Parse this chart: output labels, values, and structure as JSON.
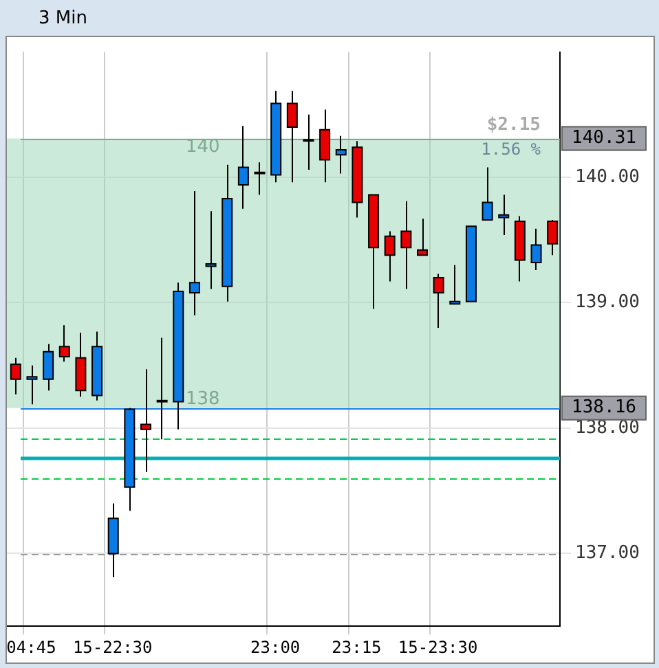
{
  "chart_data": {
    "type": "candlestick",
    "title": "3 Min",
    "categories": [
      null,
      "04:45",
      null,
      null,
      null,
      null,
      "15-22:30",
      null,
      null,
      null,
      null,
      null,
      null,
      null,
      null,
      null,
      "23:00",
      null,
      null,
      null,
      null,
      "23:15",
      null,
      null,
      null,
      null,
      "15-23:30",
      null,
      null,
      null,
      null,
      null,
      null,
      null
    ],
    "ohlc": [
      [
        138.51,
        138.56,
        138.27,
        138.39
      ],
      [
        138.39,
        138.5,
        138.19,
        138.41
      ],
      [
        138.39,
        138.67,
        138.3,
        138.61
      ],
      [
        138.65,
        138.82,
        138.53,
        138.57
      ],
      [
        138.56,
        138.76,
        138.25,
        138.3
      ],
      [
        138.26,
        138.77,
        138.22,
        138.65
      ],
      [
        137.0,
        137.4,
        136.81,
        137.28
      ],
      [
        137.53,
        138.16,
        137.34,
        138.15
      ],
      [
        138.03,
        138.47,
        137.65,
        137.99
      ],
      [
        138.21,
        138.72,
        137.91,
        138.22
      ],
      [
        138.21,
        139.16,
        137.99,
        139.09
      ],
      [
        139.08,
        139.89,
        138.9,
        139.16
      ],
      [
        139.29,
        139.73,
        139.11,
        139.31
      ],
      [
        139.13,
        140.1,
        139.01,
        139.83
      ],
      [
        139.94,
        140.41,
        139.75,
        140.08
      ],
      [
        140.03,
        140.12,
        139.86,
        140.04
      ],
      [
        140.02,
        140.69,
        139.96,
        140.59
      ],
      [
        140.59,
        140.69,
        139.96,
        140.4
      ],
      [
        140.3,
        140.5,
        140.06,
        140.29
      ],
      [
        140.38,
        140.54,
        139.96,
        140.14
      ],
      [
        140.18,
        140.33,
        140.03,
        140.22
      ],
      [
        140.24,
        140.29,
        139.68,
        139.8
      ],
      [
        139.86,
        139.86,
        138.95,
        139.44
      ],
      [
        139.53,
        139.57,
        139.17,
        139.38
      ],
      [
        139.57,
        139.81,
        139.11,
        139.44
      ],
      [
        139.42,
        139.67,
        139.38,
        139.38
      ],
      [
        139.2,
        139.23,
        138.8,
        139.08
      ],
      [
        138.99,
        139.3,
        138.99,
        139.01
      ],
      [
        139.01,
        139.61,
        139.01,
        139.61
      ],
      [
        139.66,
        140.08,
        139.66,
        139.8
      ],
      [
        139.68,
        139.86,
        139.54,
        139.7
      ],
      [
        139.65,
        139.69,
        139.17,
        139.34
      ],
      [
        139.32,
        139.59,
        139.26,
        139.46
      ],
      [
        139.65,
        139.66,
        139.38,
        139.47
      ]
    ],
    "colors": [
      "#e80000",
      "#0a7ae6",
      "#0a7ae6",
      "#e80000",
      "#e80000",
      "#0a7ae6",
      "#0a7ae6",
      "#0a7ae6",
      "#e80000",
      "#0a7ae6",
      "#0a7ae6",
      "#0a7ae6",
      "#0a7ae6",
      "#0a7ae6",
      "#0a7ae6",
      "#0a7ae6",
      "#0a7ae6",
      "#e80000",
      "#e80000",
      "#e80000",
      "#0a7ae6",
      "#e80000",
      "#e80000",
      "#e80000",
      "#e80000",
      "#e80000",
      "#e80000",
      "#0a7ae6",
      "#0a7ae6",
      "#0a7ae6",
      "#0a7ae6",
      "#e80000",
      "#0a7ae6",
      "#e80000"
    ],
    "ylim": [
      136.42,
      141.0
    ],
    "yticks": [
      {
        "value": 137,
        "label": "137.00"
      },
      {
        "value": 138,
        "label": "138.00"
      },
      {
        "value": 139,
        "label": "139.00"
      },
      {
        "value": 140,
        "label": "140.00"
      }
    ],
    "grid": true,
    "ref_lines": [
      {
        "axis": "y",
        "value": 140.31,
        "label": "140.31",
        "color": "#999999"
      },
      {
        "axis": "y",
        "value": 138.16,
        "label": "138.16",
        "color": "#1e7fe8"
      },
      {
        "axis": "y",
        "value": 137.92,
        "color": "#00d040",
        "line_style": "dashed"
      },
      {
        "axis": "y",
        "value": 137.76,
        "color": "#00b0b0"
      },
      {
        "axis": "y",
        "value": 137.6,
        "color": "#00d040",
        "line_style": "dashed"
      },
      {
        "axis": "y",
        "value": 137.0,
        "color": "#999999",
        "line_style": "dashed"
      }
    ],
    "bands": [
      {
        "axis": "y",
        "from": 138.16,
        "to": 140.31,
        "color": "#9ad6b4",
        "label": "138"
      }
    ],
    "annotations": [
      "$2.15",
      "1.56 %",
      "140"
    ]
  }
}
